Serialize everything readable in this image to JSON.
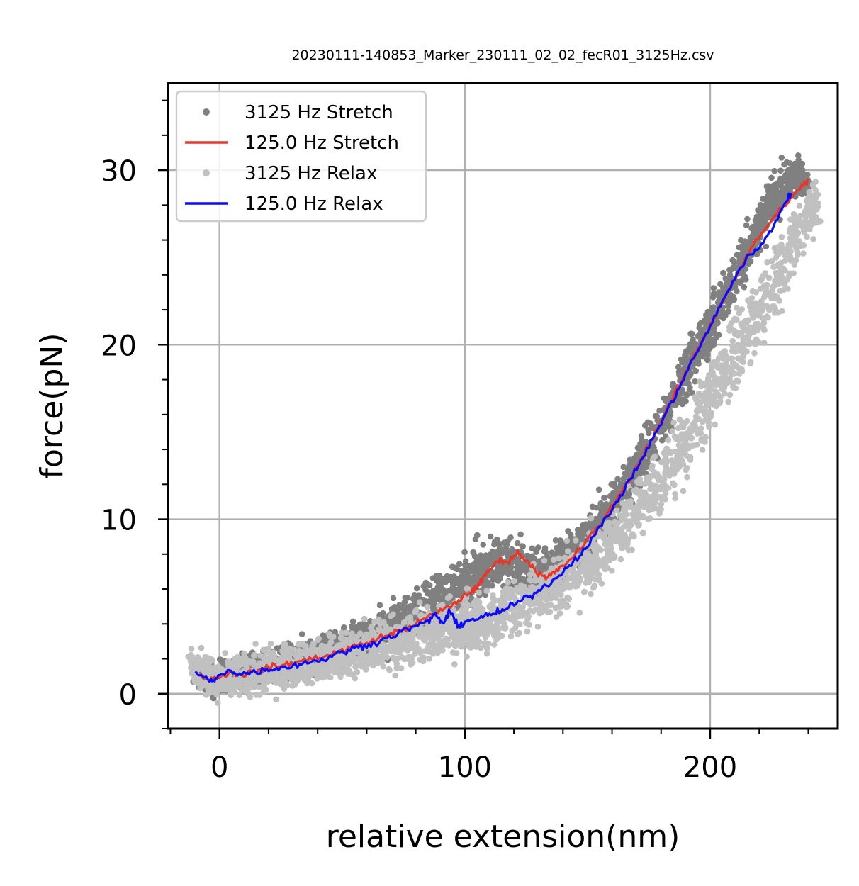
{
  "chart_data": {
    "type": "scatter",
    "title": "20230111-140853_Marker_230111_02_02_fecR01_3125Hz.csv",
    "xlabel": "relative extension(nm)",
    "ylabel": "force(pN)",
    "xlim": [
      -21,
      252
    ],
    "ylim": [
      -2,
      35
    ],
    "xticks": [
      0,
      100,
      200
    ],
    "yticks": [
      0,
      10,
      20,
      30
    ],
    "x_minor_step": 20,
    "y_minor_step": 2,
    "grid": true,
    "legend_placement": "upper-left",
    "colors": {
      "stretch_raw": "#808080",
      "stretch_filtered": "#e8362a",
      "relax_raw": "#c0c0c0",
      "relax_filtered": "#0a0aff"
    },
    "legend": [
      {
        "label": "3125 Hz Stretch",
        "kind": "dot",
        "color": "#808080"
      },
      {
        "label": "125.0 Hz Stretch",
        "kind": "line",
        "color": "#e8362a"
      },
      {
        "label": "3125 Hz Relax",
        "kind": "dot",
        "color": "#c0c0c0"
      },
      {
        "label": "125.0 Hz Relax",
        "kind": "line",
        "color": "#0a0aff"
      }
    ],
    "series": [
      {
        "name": "3125 Hz Stretch",
        "style": "scatter-band",
        "color": "#808080",
        "x": [
          -10,
          0,
          10,
          20,
          30,
          40,
          50,
          60,
          70,
          80,
          90,
          100,
          105,
          110,
          115,
          120,
          125,
          130,
          140,
          150,
          160,
          170,
          180,
          190,
          200,
          210,
          220,
          230,
          236,
          240
        ],
        "y": [
          1.0,
          0.9,
          1.3,
          1.6,
          1.9,
          2.3,
          2.7,
          3.2,
          3.8,
          4.5,
          5.4,
          6.4,
          6.9,
          7.4,
          7.5,
          7.4,
          7.1,
          6.9,
          7.7,
          9.0,
          10.7,
          12.8,
          15.4,
          18.3,
          21.2,
          24.0,
          26.8,
          29.2,
          29.7,
          29.0
        ],
        "spread": [
          1.6,
          1.4,
          1.5,
          1.5,
          1.6,
          1.6,
          1.7,
          1.8,
          1.9,
          2.0,
          2.2,
          2.3,
          2.3,
          2.3,
          2.3,
          2.3,
          2.2,
          2.0,
          1.9,
          2.0,
          2.1,
          2.2,
          2.3,
          2.4,
          2.4,
          2.4,
          2.3,
          2.0,
          1.6,
          1.4
        ]
      },
      {
        "name": "125.0 Hz Stretch",
        "style": "line",
        "color": "#e8362a",
        "x": [
          -8,
          -4,
          0,
          5,
          10,
          15,
          20,
          25,
          30,
          35,
          40,
          45,
          50,
          55,
          60,
          65,
          70,
          75,
          80,
          85,
          90,
          95,
          100,
          103,
          106,
          109,
          112,
          115,
          118,
          121,
          124,
          127,
          130,
          133,
          136,
          140,
          145,
          150,
          155,
          160,
          165,
          170,
          175,
          180,
          185,
          190,
          195,
          200,
          205,
          210,
          215,
          220,
          225,
          230,
          234,
          238,
          240
        ],
        "y": [
          1.1,
          0.8,
          1.0,
          1.2,
          1.1,
          1.3,
          1.5,
          1.6,
          1.8,
          1.9,
          2.1,
          2.2,
          2.5,
          2.7,
          2.9,
          3.2,
          3.4,
          3.7,
          4.0,
          4.4,
          4.7,
          5.1,
          5.6,
          5.9,
          6.3,
          6.9,
          7.4,
          7.7,
          7.5,
          8.1,
          7.8,
          7.4,
          6.9,
          6.6,
          6.9,
          7.3,
          8.0,
          8.8,
          9.7,
          10.7,
          11.8,
          13.0,
          14.3,
          15.6,
          17.0,
          18.4,
          19.8,
          21.1,
          22.5,
          23.8,
          25.1,
          26.2,
          27.1,
          28.0,
          28.5,
          29.2,
          29.4
        ]
      },
      {
        "name": "3125 Hz Relax",
        "style": "scatter-band",
        "color": "#c0c0c0",
        "x": [
          -12,
          -5,
          0,
          10,
          20,
          30,
          40,
          50,
          60,
          70,
          80,
          90,
          100,
          110,
          120,
          130,
          140,
          150,
          160,
          170,
          180,
          190,
          200,
          210,
          220,
          230,
          236,
          240,
          244
        ],
        "y": [
          1.6,
          1.0,
          0.8,
          1.0,
          1.3,
          1.6,
          1.9,
          2.3,
          2.6,
          2.9,
          3.2,
          3.6,
          3.9,
          4.3,
          4.9,
          5.6,
          6.4,
          7.5,
          8.8,
          10.4,
          12.3,
          14.5,
          16.8,
          19.4,
          22.0,
          24.8,
          26.6,
          27.5,
          28.0
        ],
        "spread": [
          1.4,
          1.6,
          1.8,
          1.9,
          2.0,
          2.0,
          2.1,
          2.1,
          2.2,
          2.2,
          2.3,
          2.4,
          2.5,
          2.5,
          2.5,
          2.5,
          2.6,
          2.7,
          2.8,
          3.0,
          3.1,
          3.3,
          3.4,
          3.4,
          3.3,
          3.1,
          2.9,
          2.6,
          2.2
        ]
      },
      {
        "name": "125.0 Hz Relax",
        "style": "line",
        "color": "#0a0aff",
        "x": [
          -10,
          -6,
          -3,
          0,
          4,
          8,
          12,
          16,
          20,
          25,
          30,
          35,
          40,
          45,
          50,
          55,
          60,
          65,
          70,
          75,
          80,
          85,
          88,
          91,
          94,
          97,
          100,
          104,
          108,
          112,
          116,
          120,
          125,
          130,
          135,
          140,
          145,
          150,
          155,
          160,
          165,
          170,
          175,
          180,
          185,
          190,
          195,
          200,
          205,
          210,
          215,
          220,
          225,
          230,
          233
        ],
        "y": [
          1.2,
          0.9,
          0.7,
          1.0,
          1.4,
          1.1,
          1.2,
          1.3,
          1.4,
          1.5,
          1.6,
          1.8,
          1.9,
          2.1,
          2.4,
          2.6,
          2.8,
          3.0,
          3.3,
          3.6,
          3.9,
          4.1,
          4.6,
          4.0,
          4.7,
          3.9,
          4.1,
          4.3,
          4.4,
          4.6,
          4.8,
          5.1,
          5.5,
          5.9,
          6.4,
          7.0,
          7.7,
          8.5,
          9.5,
          10.6,
          11.7,
          12.9,
          14.2,
          15.5,
          16.9,
          18.3,
          19.7,
          21.0,
          22.5,
          23.8,
          25.0,
          25.5,
          26.6,
          28.0,
          28.7
        ]
      }
    ]
  }
}
